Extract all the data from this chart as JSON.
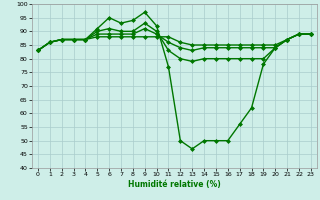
{
  "xlabel": "Humidité relative (%)",
  "bg_color": "#ceeee8",
  "grid_color": "#aacccc",
  "line_color": "#007700",
  "marker": "D",
  "markersize": 2,
  "linewidth": 1.0,
  "xlim_min": -0.5,
  "xlim_max": 23.5,
  "ylim_min": 40,
  "ylim_max": 100,
  "xticks": [
    0,
    1,
    2,
    3,
    4,
    5,
    6,
    7,
    8,
    9,
    10,
    11,
    12,
    13,
    14,
    15,
    16,
    17,
    18,
    19,
    20,
    21,
    22,
    23
  ],
  "yticks": [
    40,
    45,
    50,
    55,
    60,
    65,
    70,
    75,
    80,
    85,
    90,
    95,
    100
  ],
  "series": [
    [
      83,
      86,
      87,
      87,
      87,
      91,
      95,
      93,
      94,
      97,
      92,
      77,
      50,
      47,
      50,
      50,
      50,
      56,
      62,
      78,
      84,
      87,
      89,
      89
    ],
    [
      83,
      86,
      87,
      87,
      87,
      90,
      91,
      90,
      90,
      93,
      90,
      83,
      80,
      79,
      80,
      80,
      80,
      80,
      80,
      80,
      84,
      87,
      89,
      89
    ],
    [
      83,
      86,
      87,
      87,
      87,
      89,
      89,
      89,
      89,
      91,
      89,
      86,
      84,
      83,
      84,
      84,
      84,
      84,
      84,
      84,
      84,
      87,
      89,
      89
    ],
    [
      83,
      86,
      87,
      87,
      87,
      88,
      88,
      88,
      88,
      88,
      88,
      88,
      86,
      85,
      85,
      85,
      85,
      85,
      85,
      85,
      85,
      87,
      89,
      89
    ]
  ]
}
